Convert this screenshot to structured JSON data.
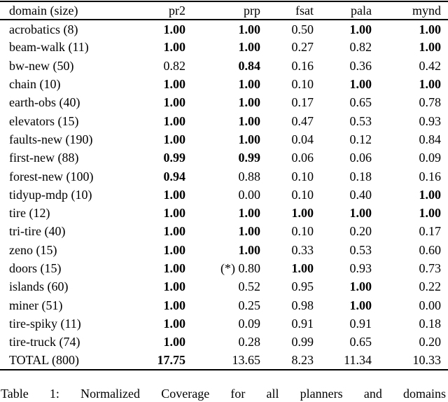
{
  "table": {
    "columns": [
      "domain (size)",
      "pr2",
      "prp",
      "fsat",
      "pala",
      "mynd"
    ],
    "rows": [
      {
        "domain": "acrobatics (8)",
        "values": [
          "1.00",
          "1.00",
          "0.50",
          "1.00",
          "1.00"
        ],
        "bold": [
          true,
          true,
          false,
          true,
          true
        ]
      },
      {
        "domain": "beam-walk (11)",
        "values": [
          "1.00",
          "1.00",
          "0.27",
          "0.82",
          "1.00"
        ],
        "bold": [
          true,
          true,
          false,
          false,
          true
        ]
      },
      {
        "domain": "bw-new (50)",
        "values": [
          "0.82",
          "0.84",
          "0.16",
          "0.36",
          "0.42"
        ],
        "bold": [
          false,
          true,
          false,
          false,
          false
        ]
      },
      {
        "domain": "chain (10)",
        "values": [
          "1.00",
          "1.00",
          "0.10",
          "1.00",
          "1.00"
        ],
        "bold": [
          true,
          true,
          false,
          true,
          true
        ]
      },
      {
        "domain": "earth-obs (40)",
        "values": [
          "1.00",
          "1.00",
          "0.17",
          "0.65",
          "0.78"
        ],
        "bold": [
          true,
          true,
          false,
          false,
          false
        ]
      },
      {
        "domain": "elevators (15)",
        "values": [
          "1.00",
          "1.00",
          "0.47",
          "0.53",
          "0.93"
        ],
        "bold": [
          true,
          true,
          false,
          false,
          false
        ]
      },
      {
        "domain": "faults-new (190)",
        "values": [
          "1.00",
          "1.00",
          "0.04",
          "0.12",
          "0.84"
        ],
        "bold": [
          true,
          true,
          false,
          false,
          false
        ]
      },
      {
        "domain": "first-new (88)",
        "values": [
          "0.99",
          "0.99",
          "0.06",
          "0.06",
          "0.09"
        ],
        "bold": [
          true,
          true,
          false,
          false,
          false
        ]
      },
      {
        "domain": "forest-new (100)",
        "values": [
          "0.94",
          "0.88",
          "0.10",
          "0.18",
          "0.16"
        ],
        "bold": [
          true,
          false,
          false,
          false,
          false
        ]
      },
      {
        "domain": "tidyup-mdp (10)",
        "values": [
          "1.00",
          "0.00",
          "0.10",
          "0.40",
          "1.00"
        ],
        "bold": [
          true,
          false,
          false,
          false,
          true
        ]
      },
      {
        "domain": "tire (12)",
        "values": [
          "1.00",
          "1.00",
          "1.00",
          "1.00",
          "1.00"
        ],
        "bold": [
          true,
          true,
          true,
          true,
          true
        ]
      },
      {
        "domain": "tri-tire (40)",
        "values": [
          "1.00",
          "1.00",
          "0.10",
          "0.20",
          "0.17"
        ],
        "bold": [
          true,
          true,
          false,
          false,
          false
        ]
      },
      {
        "domain": "zeno (15)",
        "values": [
          "1.00",
          "1.00",
          "0.33",
          "0.53",
          "0.60"
        ],
        "bold": [
          true,
          true,
          false,
          false,
          false
        ]
      },
      {
        "domain": "doors (15)",
        "values": [
          "1.00",
          "(*) 0.80",
          "1.00",
          "0.93",
          "0.73"
        ],
        "bold": [
          true,
          false,
          true,
          false,
          false
        ]
      },
      {
        "domain": "islands (60)",
        "values": [
          "1.00",
          "0.52",
          "0.95",
          "1.00",
          "0.22"
        ],
        "bold": [
          true,
          false,
          false,
          true,
          false
        ]
      },
      {
        "domain": "miner (51)",
        "values": [
          "1.00",
          "0.25",
          "0.98",
          "1.00",
          "0.00"
        ],
        "bold": [
          true,
          false,
          false,
          true,
          false
        ]
      },
      {
        "domain": "tire-spiky (11)",
        "values": [
          "1.00",
          "0.09",
          "0.91",
          "0.91",
          "0.18"
        ],
        "bold": [
          true,
          false,
          false,
          false,
          false
        ]
      },
      {
        "domain": "tire-truck (74)",
        "values": [
          "1.00",
          "0.28",
          "0.99",
          "0.65",
          "0.20"
        ],
        "bold": [
          true,
          false,
          false,
          false,
          false
        ]
      },
      {
        "domain": "TOTAL (800)",
        "values": [
          "17.75",
          "13.65",
          "8.23",
          "11.34",
          "10.33"
        ],
        "bold": [
          true,
          false,
          false,
          false,
          false
        ],
        "total": true
      }
    ]
  },
  "caption": "Table 1: Normalized Coverage for all planners and domains"
}
